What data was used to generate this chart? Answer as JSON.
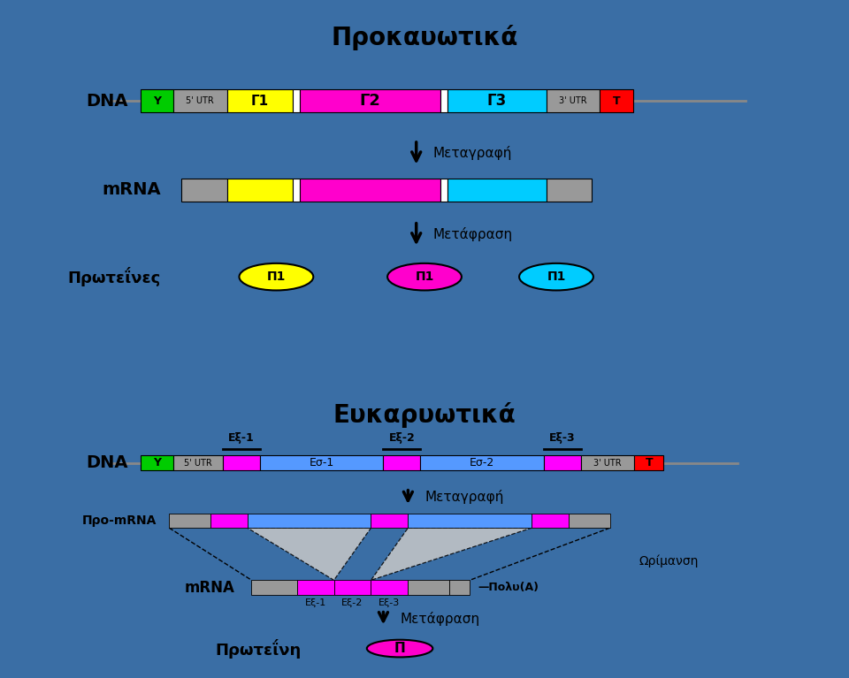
{
  "title_prokaryotic": "Προκαυωτικά",
  "title_eukaryotic": "Ευκαρυωτικά",
  "transcription_label": "Μεταγραφή",
  "translation_label": "Μετάφραση",
  "maturation_label": "Ωρίμανση",
  "polyA_label": "—Πολυ(Α)",
  "dna_label": "DNA",
  "mrna_label": "mRNA",
  "promrna_label": "Προ-mRNA",
  "protein_label_plural": "Πρωτεΐνες",
  "protein_label_singular": "Πρωτεΐνη",
  "protein_symbol": "Π1",
  "protein_symbol2": "Π",
  "panel_bg": "#FFFFFF",
  "border_color": "#3A6EA5",
  "gray_color": "#999999",
  "green_color": "#00BB00",
  "yellow_color": "#FFFF00",
  "magenta_color": "#FF00CC",
  "magenta2_color": "#FF00FF",
  "cyan_color": "#00CCFF",
  "red_color": "#FF0000",
  "blue_color": "#5599FF",
  "white_color": "#FFFFFF",
  "black_color": "#000000",
  "trap_color": "#C8C8C8"
}
